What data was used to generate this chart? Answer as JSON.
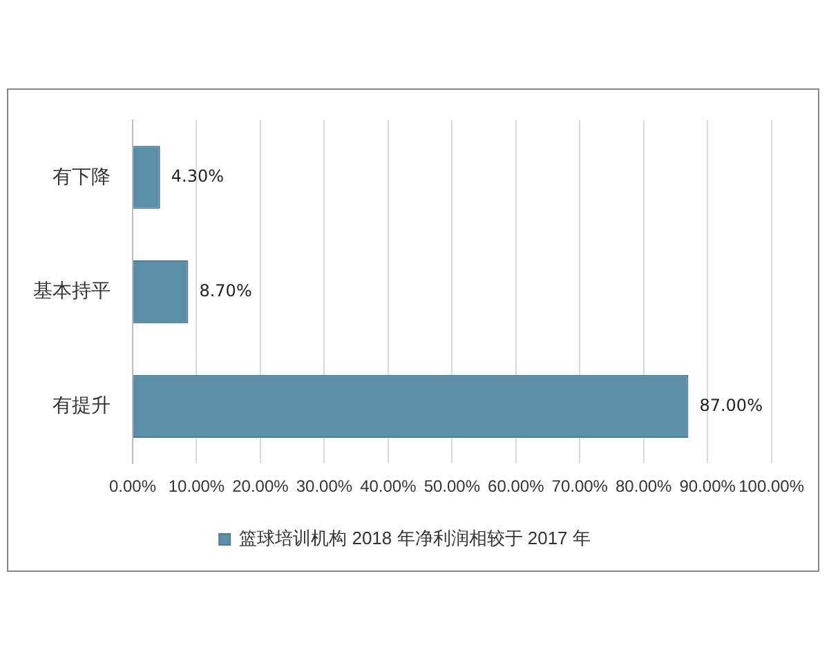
{
  "chart_data": {
    "type": "bar",
    "orientation": "horizontal",
    "categories": [
      "有下降",
      "基本持平",
      "有提升"
    ],
    "series": [
      {
        "name": "篮球培训机构 2018 年净利润相较于 2017 年",
        "color": "#5b8fa7",
        "values": [
          4.3,
          8.7,
          87
        ],
        "value_labels": [
          "4.30%",
          "8.70%",
          "87.00%"
        ]
      }
    ],
    "xlim": [
      0,
      100
    ],
    "xticks": [
      {
        "value": 0,
        "label": "0.00%"
      },
      {
        "value": 10,
        "label": "10.00%"
      },
      {
        "value": 20,
        "label": "20.00%"
      },
      {
        "value": 30,
        "label": "30.00%"
      },
      {
        "value": 40,
        "label": "40.00%"
      },
      {
        "value": 50,
        "label": "50.00%"
      },
      {
        "value": 60,
        "label": "60.00%"
      },
      {
        "value": 70,
        "label": "70.00%"
      },
      {
        "value": 80,
        "label": "80.00%"
      },
      {
        "value": 90,
        "label": "90.00%"
      },
      {
        "value": 100,
        "label": "100.00%"
      }
    ],
    "grid": "x",
    "legend": "bottom"
  }
}
